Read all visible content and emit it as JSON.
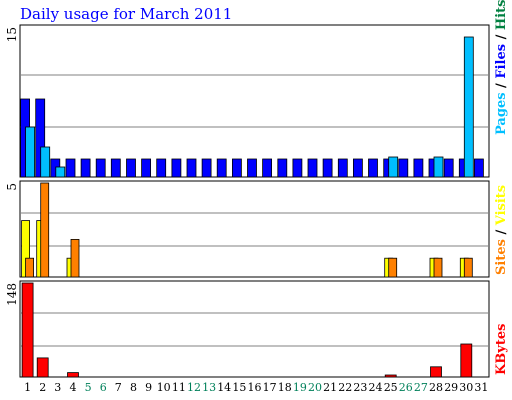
{
  "chart_data": {
    "type": "bar",
    "title": "Daily usage for March 2011",
    "x": [
      "1",
      "2",
      "3",
      "4",
      "5",
      "6",
      "7",
      "8",
      "9",
      "10",
      "11",
      "12",
      "13",
      "14",
      "15",
      "16",
      "17",
      "18",
      "19",
      "20",
      "21",
      "22",
      "23",
      "24",
      "25",
      "26",
      "27",
      "28",
      "29",
      "30",
      "31"
    ],
    "weekend_days": [
      "5",
      "6",
      "12",
      "13",
      "19",
      "20",
      "26",
      "27"
    ],
    "panels": [
      {
        "id": "hits",
        "ymax_label": "15",
        "ylim": [
          0,
          15
        ],
        "series": [
          {
            "name": "Hits",
            "color": "#0000ff",
            "values": [
              7.8,
              7.8,
              1.8,
              1.8,
              1.8,
              1.8,
              1.8,
              1.8,
              1.8,
              1.8,
              1.8,
              1.8,
              1.8,
              1.8,
              1.8,
              1.8,
              1.8,
              1.8,
              1.8,
              1.8,
              1.8,
              1.8,
              1.8,
              1.8,
              1.8,
              1.8,
              1.8,
              1.8,
              1.8,
              1.8,
              1.8
            ]
          },
          {
            "name": "Files",
            "color": "#00bfff",
            "values": [
              5,
              3,
              1,
              0,
              0,
              0,
              0,
              0,
              0,
              0,
              0,
              0,
              0,
              0,
              0,
              0,
              0,
              0,
              0,
              0,
              0,
              0,
              0,
              0,
              2,
              0,
              0,
              2,
              0,
              14,
              0
            ]
          }
        ]
      },
      {
        "id": "visits",
        "ymax_label": "5",
        "ylim": [
          0,
          5
        ],
        "series": [
          {
            "name": "Visits",
            "color": "#ffff00",
            "values": [
              3,
              3,
              0,
              1,
              0,
              0,
              0,
              0,
              0,
              0,
              0,
              0,
              0,
              0,
              0,
              0,
              0,
              0,
              0,
              0,
              0,
              0,
              0,
              0,
              1,
              0,
              0,
              1,
              0,
              1,
              0
            ]
          },
          {
            "name": "Sites",
            "color": "#ff8000",
            "values": [
              1,
              5,
              0,
              2,
              0,
              0,
              0,
              0,
              0,
              0,
              0,
              0,
              0,
              0,
              0,
              0,
              0,
              0,
              0,
              0,
              0,
              0,
              0,
              0,
              1,
              0,
              0,
              1,
              0,
              1,
              0
            ]
          }
        ]
      },
      {
        "id": "kbytes",
        "ymax_label": "148",
        "ylim": [
          0,
          148
        ],
        "series": [
          {
            "name": "KBytes",
            "color": "#ff0000",
            "values": [
              148,
              30,
              0,
              7,
              0,
              0,
              0,
              0,
              0,
              0,
              0,
              0,
              0,
              0,
              0,
              0,
              0,
              0,
              0,
              0,
              0,
              0,
              0,
              0,
              3,
              0,
              0,
              16,
              0,
              52,
              0
            ]
          }
        ]
      }
    ],
    "legend": {
      "top": [
        "Pages",
        " / ",
        "Files",
        " / ",
        "Hits"
      ],
      "middle": [
        "Sites",
        " / ",
        "Visits"
      ],
      "bottom": [
        "KBytes"
      ]
    },
    "legend_colors": {
      "Pages": "#00bfff",
      "Files": "#0000ff",
      "Hits": "#008040",
      "Sites": "#ff8000",
      "Visits": "#ffff00",
      "KBytes": "#ff0000",
      "sep": "#000000"
    },
    "weekday_color": "#000000",
    "weekend_color": "#00805a"
  }
}
